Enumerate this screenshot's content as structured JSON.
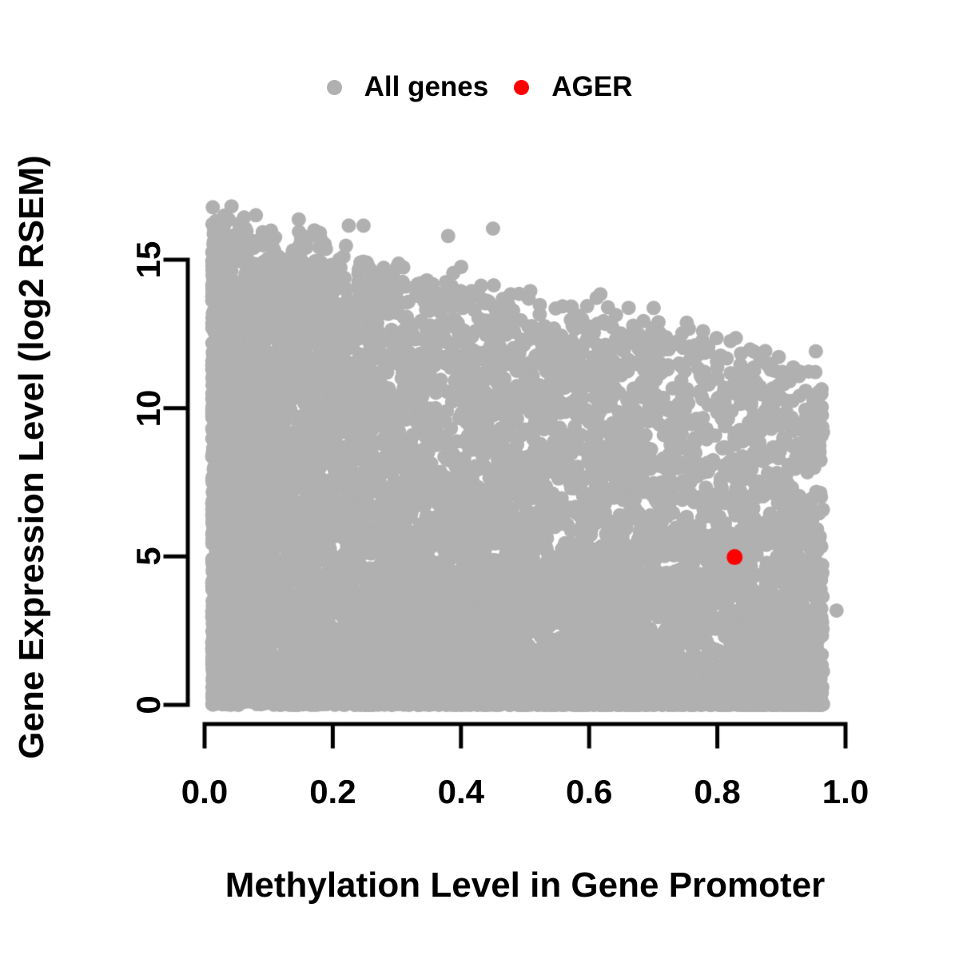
{
  "chart_data": {
    "type": "scatter",
    "title": "",
    "xlabel": "Methylation Level in Gene Promoter",
    "ylabel": "Gene Expression Level (log2 RSEM)",
    "xlim": [
      0,
      1
    ],
    "ylim": [
      0,
      15
    ],
    "grid": false,
    "legend_position": "top-center",
    "x_ticks": [
      "0.0",
      "0.2",
      "0.4",
      "0.6",
      "0.8",
      "1.0"
    ],
    "x_tick_values": [
      0,
      0.2,
      0.4,
      0.6,
      0.8,
      1.0
    ],
    "y_ticks": [
      "0",
      "5",
      "10",
      "15"
    ],
    "y_tick_values": [
      0,
      5,
      10,
      15
    ],
    "legend": [
      {
        "label": "All genes",
        "color": "#b0b0b0"
      },
      {
        "label": "AGER",
        "color": "#ff0000"
      }
    ],
    "point_radius_px": 9,
    "highlight_point_radius_px": 10,
    "axis_color": "#000000",
    "series": [
      {
        "name": "All genes",
        "color": "#b0b0b0",
        "representation": "generated-cloud",
        "n_points": 10000,
        "seed": 42,
        "x_min": 0.012,
        "x_max": 0.965,
        "left_fraction": 0.62,
        "left_skew_pow": 1.7,
        "envelope_intercept": 16.2,
        "envelope_slope": -5.0,
        "envelope_noise_sd": 0.35,
        "y_skew_pow_base": 1.25,
        "y_skew_pow_x_gain": 1.35,
        "y_max_clip": 16.9,
        "outlier_points": [
          [
            0.042,
            16.8
          ],
          [
            0.08,
            16.5
          ],
          [
            0.225,
            16.15
          ],
          [
            0.248,
            16.15
          ],
          [
            0.45,
            16.05
          ],
          [
            0.18,
            15.9
          ],
          [
            0.38,
            15.8
          ],
          [
            0.986,
            3.18
          ]
        ]
      },
      {
        "name": "AGER",
        "color": "#ff0000",
        "points": [
          [
            0.827,
            4.98
          ]
        ]
      }
    ]
  }
}
